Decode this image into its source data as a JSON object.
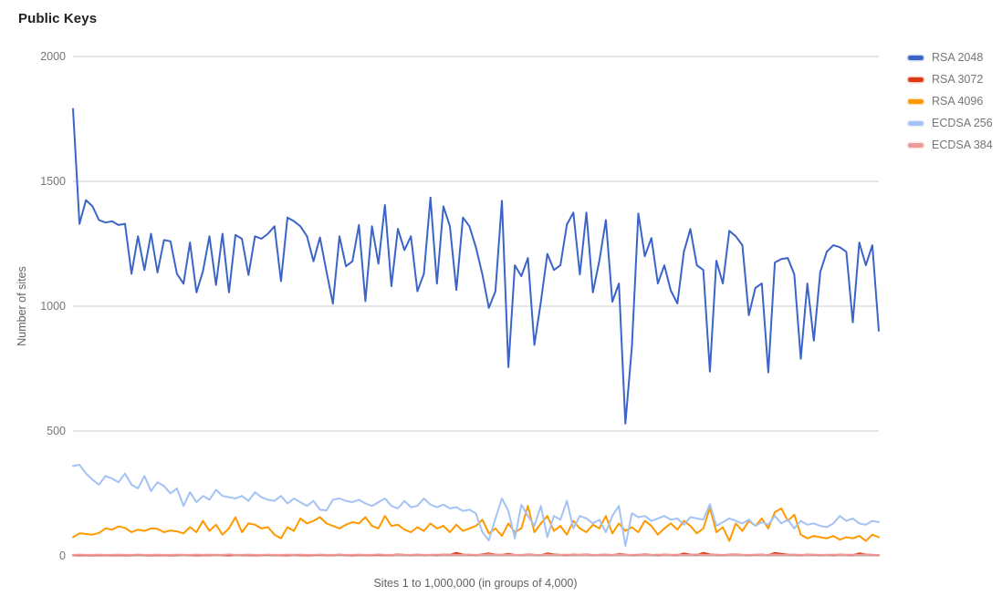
{
  "title": "Public Keys",
  "chart_data": {
    "type": "line",
    "title": "Public Keys",
    "xlabel": "Sites 1 to 1,000,000 (in groups of 4,000)",
    "ylabel": "Number of sites",
    "ylim": [
      0,
      2000
    ],
    "yticks": [
      0,
      500,
      1000,
      1500,
      2000
    ],
    "grid": true,
    "legend_position": "right",
    "x_range_note": "sites 1 to 1,000,000 grouped by 4,000; values sampled across the full range",
    "series": [
      {
        "name": "RSA 2048",
        "color": "#3c64c8",
        "values": [
          1790,
          1330,
          1425,
          1400,
          1345,
          1335,
          1340,
          1325,
          1330,
          1130,
          1280,
          1145,
          1290,
          1135,
          1265,
          1260,
          1130,
          1090,
          1255,
          1055,
          1140,
          1280,
          1085,
          1290,
          1055,
          1285,
          1270,
          1125,
          1280,
          1270,
          1290,
          1320,
          1100,
          1355,
          1340,
          1320,
          1280,
          1180,
          1275,
          1140,
          1010,
          1280,
          1160,
          1180,
          1325,
          1020,
          1320,
          1170,
          1405,
          1080,
          1310,
          1225,
          1280,
          1060,
          1130,
          1435,
          1090,
          1400,
          1320,
          1065,
          1355,
          1320,
          1236,
          1127,
          993,
          1060,
          1422,
          756,
          1164,
          1120,
          1193,
          845,
          1018,
          1210,
          1145,
          1164,
          1327,
          1375,
          1127,
          1375,
          1055,
          1182,
          1345,
          1018,
          1091,
          530,
          836,
          1371,
          1200,
          1273,
          1091,
          1164,
          1062,
          1011,
          1218,
          1309,
          1164,
          1145,
          738,
          1182,
          1091,
          1302,
          1280,
          1244,
          964,
          1073,
          1091,
          735,
          1175,
          1189,
          1193,
          1127,
          789,
          1091,
          862,
          1138,
          1218,
          1244,
          1236,
          1218,
          935,
          1255,
          1164,
          1244,
          902
        ]
      },
      {
        "name": "RSA 3072",
        "color": "#dc3912",
        "values": [
          3,
          2,
          3,
          2,
          3,
          3,
          2,
          3,
          2,
          3,
          4,
          3,
          2,
          3,
          3,
          2,
          3,
          4,
          3,
          2,
          3,
          3,
          4,
          3,
          2,
          4,
          3,
          3,
          2,
          3,
          4,
          3,
          3,
          2,
          4,
          3,
          2,
          3,
          4,
          3,
          3,
          5,
          3,
          2,
          4,
          3,
          3,
          4,
          3,
          3,
          6,
          4,
          3,
          5,
          3,
          4,
          3,
          5,
          4,
          12,
          5,
          4,
          3,
          6,
          10,
          5,
          4,
          8,
          4,
          3,
          6,
          4,
          3,
          10,
          6,
          4,
          3,
          5,
          4,
          6,
          3,
          4,
          5,
          3,
          8,
          5,
          3,
          4,
          6,
          4,
          3,
          5,
          4,
          3,
          10,
          5,
          4,
          12,
          6,
          4,
          3,
          5,
          6,
          4,
          3,
          4,
          5,
          3,
          12,
          8,
          5,
          4,
          3,
          5,
          4,
          3,
          4,
          3,
          5,
          4,
          3,
          10,
          6,
          4,
          3
        ]
      },
      {
        "name": "RSA 4096",
        "color": "#ff9900",
        "values": [
          75,
          90,
          88,
          85,
          92,
          110,
          105,
          118,
          112,
          95,
          105,
          100,
          110,
          108,
          95,
          102,
          98,
          90,
          115,
          95,
          140,
          100,
          125,
          85,
          110,
          155,
          95,
          130,
          125,
          110,
          115,
          85,
          70,
          115,
          100,
          150,
          130,
          140,
          155,
          130,
          120,
          110,
          125,
          135,
          130,
          155,
          120,
          110,
          160,
          120,
          125,
          105,
          95,
          115,
          100,
          130,
          110,
          120,
          95,
          125,
          100,
          110,
          120,
          145,
          90,
          110,
          80,
          130,
          95,
          110,
          200,
          95,
          130,
          160,
          100,
          120,
          85,
          140,
          110,
          95,
          125,
          110,
          160,
          90,
          130,
          100,
          115,
          95,
          140,
          120,
          85,
          110,
          130,
          105,
          140,
          120,
          90,
          110,
          193,
          95,
          115,
          60,
          130,
          100,
          140,
          120,
          150,
          110,
          175,
          190,
          140,
          165,
          85,
          70,
          80,
          75,
          70,
          80,
          65,
          75,
          70,
          80,
          60,
          85,
          75
        ]
      },
      {
        "name": "ECDSA 256",
        "color": "#a4c2f4",
        "values": [
          360,
          365,
          330,
          305,
          285,
          320,
          310,
          295,
          330,
          285,
          270,
          320,
          260,
          295,
          280,
          250,
          270,
          200,
          255,
          215,
          240,
          225,
          265,
          240,
          235,
          230,
          240,
          220,
          255,
          235,
          225,
          220,
          240,
          210,
          230,
          215,
          200,
          220,
          185,
          182,
          225,
          230,
          220,
          215,
          225,
          210,
          200,
          215,
          230,
          200,
          190,
          220,
          195,
          200,
          230,
          205,
          195,
          205,
          190,
          195,
          180,
          185,
          170,
          95,
          62,
          150,
          230,
          180,
          70,
          205,
          160,
          120,
          200,
          75,
          160,
          145,
          220,
          110,
          160,
          150,
          130,
          145,
          95,
          160,
          200,
          40,
          170,
          155,
          160,
          140,
          150,
          160,
          145,
          150,
          125,
          155,
          150,
          145,
          207,
          120,
          135,
          150,
          140,
          130,
          145,
          120,
          135,
          125,
          160,
          130,
          145,
          110,
          140,
          125,
          130,
          120,
          115,
          130,
          160,
          140,
          150,
          130,
          125,
          140,
          135
        ]
      },
      {
        "name": "ECDSA 384",
        "color": "#ef9a9a",
        "values": [
          4,
          5,
          4,
          4,
          5,
          4,
          4,
          5,
          4,
          4,
          5,
          4,
          4,
          5,
          4,
          4,
          5,
          4,
          4,
          5,
          4,
          5,
          4,
          4,
          6,
          4,
          4,
          5,
          4,
          4,
          5,
          4,
          4,
          5,
          4,
          5,
          4,
          4,
          5,
          4,
          4,
          5,
          4,
          4,
          5,
          4,
          4,
          6,
          4,
          4,
          5,
          4,
          4,
          5,
          4,
          4,
          5,
          4,
          5,
          4,
          4,
          5,
          4,
          4,
          6,
          4,
          4,
          5,
          4,
          4,
          5,
          4,
          4,
          5,
          4,
          4,
          5,
          4,
          4,
          5,
          4,
          4,
          5,
          4,
          6,
          4,
          4,
          5,
          4,
          4,
          5,
          4,
          4,
          5,
          4,
          4,
          6,
          4,
          4,
          5,
          4,
          4,
          5,
          4,
          4,
          5,
          4,
          4,
          6,
          4,
          4,
          5,
          4,
          4,
          5,
          4,
          4,
          5,
          4,
          4,
          5,
          4,
          6,
          4,
          4
        ]
      }
    ]
  }
}
